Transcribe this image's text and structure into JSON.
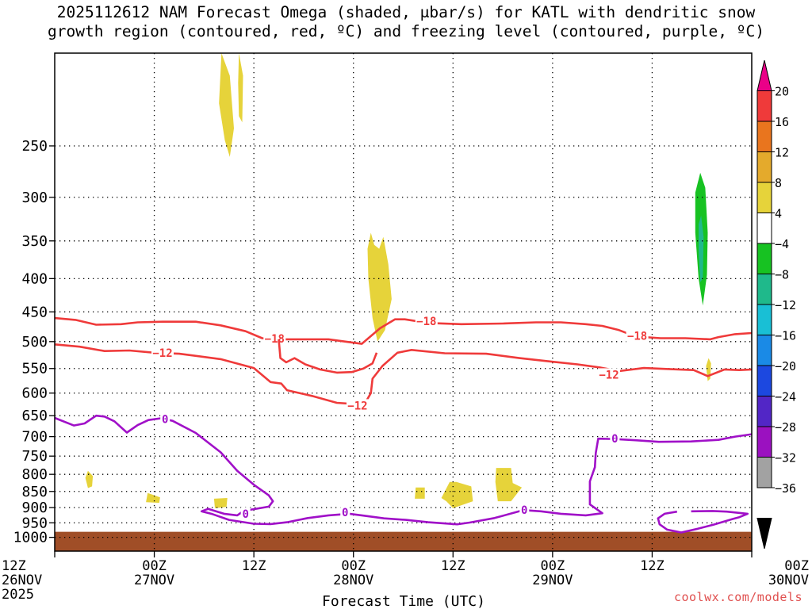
{
  "title_line1": "2025112612 NAM Forecast Omega (shaded, μbar/s) for KATL with dendritic snow",
  "title_line2": "growth region (contoured, red, ºC) and freezing level (contoured, purple, ºC)",
  "credit": "coolwx.com/models",
  "chart_data": {
    "type": "time-height contour",
    "xlabel": "Forecast Time (UTC)",
    "x_ticks": [
      {
        "hour": 0,
        "line1": "12Z",
        "line2": "26NOV",
        "line3": "2025"
      },
      {
        "hour": 12,
        "line1": "00Z",
        "line2": "27NOV",
        "line3": ""
      },
      {
        "hour": 24,
        "line1": "12Z",
        "line2": "",
        "line3": ""
      },
      {
        "hour": 36,
        "line1": "00Z",
        "line2": "28NOV",
        "line3": ""
      },
      {
        "hour": 48,
        "line1": "12Z",
        "line2": "",
        "line3": ""
      },
      {
        "hour": 60,
        "line1": "00Z",
        "line2": "29NOV",
        "line3": ""
      },
      {
        "hour": 72,
        "line1": "12Z",
        "line2": "",
        "line3": ""
      },
      {
        "hour": 84,
        "line1": "00Z",
        "line2": "30NOV",
        "line3": ""
      }
    ],
    "xlim": [
      0,
      84
    ],
    "ylabel": "",
    "y_scale": "log (pressure, hPa, inverted)",
    "ylim": [
      1050,
      180
    ],
    "y_ticks": [
      250,
      300,
      350,
      400,
      450,
      500,
      550,
      600,
      650,
      700,
      750,
      800,
      850,
      900,
      950,
      1000
    ],
    "grid": true,
    "colorbar": {
      "labels": [
        "20",
        "16",
        "12",
        "8",
        "4",
        "−4",
        "−8",
        "−12",
        "−16",
        "−20",
        "−24",
        "−28",
        "−32",
        "−36"
      ],
      "colors": [
        "#ea0088",
        "#ef3a3a",
        "#e9751e",
        "#e4aa2c",
        "#e6d33a",
        "#ffffff",
        "#17c222",
        "#1fb98b",
        "#19bfd5",
        "#1a8ae6",
        "#1c48e0",
        "#5226c6",
        "#9b11c0",
        "#a2a2a2",
        "#000000"
      ]
    },
    "surface_color": "#a04e27",
    "shaded_omega": [
      {
        "value": "4",
        "color": "#e6d33a",
        "points": [
          [
            20.1,
            180
          ],
          [
            21.1,
            195
          ],
          [
            21.6,
            235
          ],
          [
            21.1,
            260
          ],
          [
            20.5,
            245
          ],
          [
            19.8,
            215
          ]
        ]
      },
      {
        "value": "4",
        "color": "#e6d33a",
        "points": [
          [
            22.2,
            180
          ],
          [
            22.7,
            195
          ],
          [
            22.6,
            230
          ],
          [
            22.2,
            225
          ],
          [
            22.1,
            200
          ]
        ]
      },
      {
        "value": "4",
        "color": "#e6d33a",
        "points": [
          [
            38.1,
            340
          ],
          [
            38.5,
            355
          ],
          [
            39.1,
            360
          ],
          [
            39.6,
            345
          ],
          [
            40.2,
            380
          ],
          [
            40.6,
            430
          ],
          [
            39.8,
            480
          ],
          [
            38.9,
            500
          ],
          [
            38.3,
            460
          ],
          [
            37.8,
            400
          ],
          [
            37.7,
            360
          ]
        ]
      },
      {
        "value": "4",
        "color": "#e6d33a",
        "points": [
          [
            4.0,
            790
          ],
          [
            4.6,
            805
          ],
          [
            4.5,
            835
          ],
          [
            4.0,
            840
          ],
          [
            3.7,
            810
          ]
        ]
      },
      {
        "value": "4",
        "color": "#e6d33a",
        "points": [
          [
            11.2,
            855
          ],
          [
            11.8,
            860
          ],
          [
            12.7,
            868
          ],
          [
            12.6,
            885
          ],
          [
            11.0,
            883
          ]
        ]
      },
      {
        "value": "4",
        "color": "#e6d33a",
        "points": [
          [
            19.2,
            872
          ],
          [
            20.8,
            870
          ],
          [
            20.7,
            898
          ],
          [
            19.3,
            902
          ]
        ]
      },
      {
        "value": "4",
        "color": "#e6d33a",
        "points": [
          [
            43.5,
            838
          ],
          [
            44.6,
            838
          ],
          [
            44.6,
            872
          ],
          [
            43.4,
            872
          ]
        ]
      },
      {
        "value": "4",
        "color": "#e6d33a",
        "points": [
          [
            47.6,
            822
          ],
          [
            48.4,
            822
          ],
          [
            50.2,
            835
          ],
          [
            50.4,
            880
          ],
          [
            48.0,
            902
          ],
          [
            47.2,
            880
          ],
          [
            46.6,
            870
          ]
        ]
      },
      {
        "value": "4",
        "color": "#e6d33a",
        "points": [
          [
            53.2,
            782
          ],
          [
            55.0,
            782
          ],
          [
            55.2,
            825
          ],
          [
            56.3,
            838
          ],
          [
            55.0,
            880
          ],
          [
            53.4,
            880
          ],
          [
            53.1,
            822
          ]
        ]
      },
      {
        "value": "4",
        "color": "#e6d33a",
        "points": [
          [
            78.8,
            530
          ],
          [
            79.1,
            540
          ],
          [
            79.0,
            570
          ],
          [
            78.7,
            575
          ],
          [
            78.5,
            545
          ]
        ]
      },
      {
        "value": "-4",
        "color": "#17c222",
        "points": [
          [
            77.8,
            275
          ],
          [
            78.4,
            290
          ],
          [
            78.7,
            340
          ],
          [
            78.6,
            395
          ],
          [
            78.1,
            440
          ],
          [
            77.6,
            400
          ],
          [
            77.2,
            340
          ],
          [
            77.2,
            295
          ]
        ]
      },
      {
        "value": "-8",
        "color": "#1fb98b",
        "points": [
          [
            77.9,
            320
          ],
          [
            78.2,
            345
          ],
          [
            78.1,
            400
          ],
          [
            77.8,
            405
          ],
          [
            77.6,
            360
          ],
          [
            77.6,
            330
          ]
        ]
      }
    ],
    "contours": [
      {
        "value": "-18",
        "color": "#ef3a3a",
        "label_at": [
          [
            26.5,
            495
          ],
          [
            44.8,
            465
          ],
          [
            70.2,
            490
          ]
        ],
        "points": [
          [
            0,
            460
          ],
          [
            2.5,
            463
          ],
          [
            5,
            471
          ],
          [
            8,
            470
          ],
          [
            10,
            467
          ],
          [
            13,
            466
          ],
          [
            17,
            466
          ],
          [
            20,
            472
          ],
          [
            23,
            482
          ],
          [
            25,
            494
          ],
          [
            27,
            496
          ],
          [
            33,
            496
          ],
          [
            37,
            504
          ],
          [
            39.2,
            477
          ],
          [
            41,
            462
          ],
          [
            42.2,
            462
          ],
          [
            45,
            468
          ],
          [
            49,
            470
          ],
          [
            54,
            469
          ],
          [
            58,
            467
          ],
          [
            61,
            467
          ],
          [
            64,
            470
          ],
          [
            66,
            473
          ],
          [
            68,
            480
          ],
          [
            70,
            491
          ],
          [
            73,
            494
          ],
          [
            76,
            494
          ],
          [
            79,
            496
          ],
          [
            80,
            492
          ],
          [
            82,
            487
          ],
          [
            84,
            485
          ]
        ]
      },
      {
        "value": "-12",
        "color": "#ef3a3a",
        "label_at": [
          [
            13,
            520
          ],
          [
            36.5,
            627
          ],
          [
            66.8,
            562
          ]
        ],
        "points": [
          [
            0,
            505
          ],
          [
            3,
            509
          ],
          [
            6,
            517
          ],
          [
            9,
            516
          ],
          [
            12,
            520
          ],
          [
            15,
            522
          ],
          [
            20,
            532
          ],
          [
            24,
            549
          ],
          [
            26,
            577
          ],
          [
            27.3,
            580
          ],
          [
            28,
            594
          ],
          [
            31,
            606
          ],
          [
            34,
            621
          ],
          [
            37.3,
            625
          ],
          [
            38.1,
            600
          ],
          [
            38.3,
            570
          ],
          [
            39.5,
            545
          ],
          [
            41.3,
            520
          ],
          [
            43,
            515
          ],
          [
            47,
            521
          ],
          [
            52,
            522
          ],
          [
            56,
            530
          ],
          [
            60,
            537
          ],
          [
            63,
            542
          ],
          [
            65.7,
            548
          ],
          [
            68,
            555
          ],
          [
            71,
            549
          ],
          [
            74,
            551
          ],
          [
            77,
            553
          ],
          [
            78.7,
            565
          ],
          [
            80.7,
            552
          ],
          [
            82.5,
            553
          ],
          [
            84,
            552
          ]
        ]
      },
      {
        "value": "-12b",
        "color": "#ef3a3a",
        "label_at": [],
        "points": [
          [
            27,
            496
          ],
          [
            27.2,
            530
          ],
          [
            27.9,
            538
          ],
          [
            28.9,
            530
          ],
          [
            30.2,
            542
          ],
          [
            32,
            552
          ],
          [
            34,
            558
          ],
          [
            35.8,
            557
          ],
          [
            37.2,
            550
          ],
          [
            38.3,
            540
          ],
          [
            38.8,
            520
          ]
        ]
      },
      {
        "value": "0",
        "color": "#a010c8",
        "label_at": [
          [
            13.3,
            658
          ],
          [
            23,
            920
          ],
          [
            35,
            915
          ],
          [
            56.6,
            907
          ],
          [
            67.5,
            705
          ]
        ],
        "points": [
          [
            0,
            655
          ],
          [
            2.3,
            673
          ],
          [
            3.6,
            668
          ],
          [
            5,
            650
          ],
          [
            6,
            652
          ],
          [
            7.2,
            663
          ],
          [
            8.7,
            690
          ],
          [
            10,
            672
          ],
          [
            11.3,
            660
          ],
          [
            12.8,
            656
          ],
          [
            14.2,
            662
          ],
          [
            17,
            691
          ],
          [
            20,
            740
          ],
          [
            22,
            790
          ],
          [
            24,
            830
          ],
          [
            25.8,
            862
          ],
          [
            26.3,
            880
          ],
          [
            25.8,
            897
          ],
          [
            24,
            905
          ],
          [
            22.8,
            910
          ],
          [
            22,
            925
          ],
          [
            20.4,
            920
          ],
          [
            18.5,
            904
          ],
          [
            17.7,
            912
          ],
          [
            19,
            921
          ],
          [
            21,
            940
          ],
          [
            24,
            953
          ],
          [
            26,
            954
          ],
          [
            28,
            948
          ],
          [
            30.5,
            934
          ],
          [
            33,
            925
          ],
          [
            35.5,
            920
          ],
          [
            37,
            925
          ],
          [
            39.7,
            935
          ],
          [
            42.3,
            940
          ],
          [
            45,
            948
          ],
          [
            48.5,
            955
          ],
          [
            50,
            949
          ],
          [
            53,
            934
          ],
          [
            56.5,
            908
          ],
          [
            58.6,
            912
          ],
          [
            61,
            920
          ],
          [
            64,
            925
          ],
          [
            66,
            918
          ],
          [
            64.5,
            890
          ],
          [
            64.5,
            820
          ],
          [
            65.1,
            780
          ],
          [
            65.2,
            742
          ],
          [
            65.5,
            705
          ],
          [
            67.5,
            706
          ],
          [
            70,
            709
          ],
          [
            72.8,
            713
          ],
          [
            76.7,
            712
          ],
          [
            80,
            708
          ],
          [
            82,
            700
          ],
          [
            84,
            694
          ]
        ]
      },
      {
        "value": "0b",
        "color": "#a010c8",
        "label_at": [],
        "points": [
          [
            76.7,
            912
          ],
          [
            79.3,
            911
          ],
          [
            81,
            913
          ],
          [
            83.5,
            920
          ],
          [
            82.5,
            931
          ],
          [
            81.7,
            937
          ],
          [
            79.4,
            956
          ],
          [
            77.5,
            970
          ],
          [
            75.5,
            983
          ],
          [
            73.8,
            973
          ],
          [
            72.9,
            955
          ],
          [
            72.7,
            935
          ],
          [
            73.5,
            920
          ],
          [
            75,
            913
          ]
        ]
      }
    ]
  }
}
